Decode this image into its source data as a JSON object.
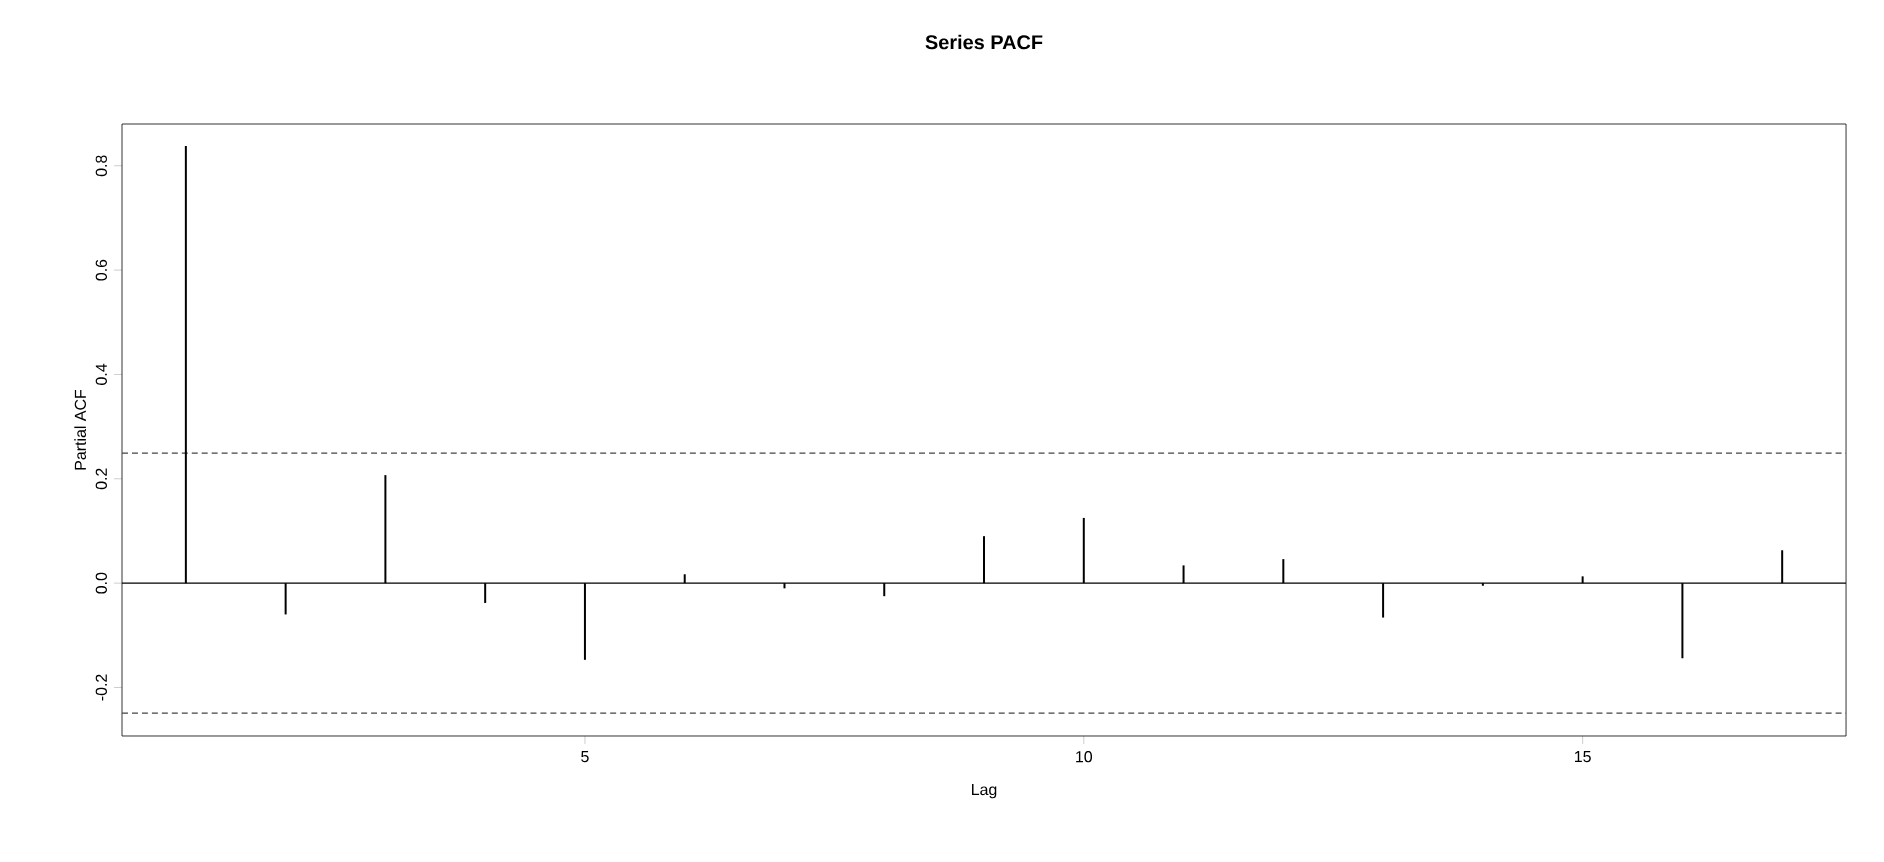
{
  "chart_data": {
    "type": "bar",
    "title": "Series  PACF",
    "xlabel": "Lag",
    "ylabel": "Partial ACF",
    "x": [
      1,
      2,
      3,
      4,
      5,
      6,
      7,
      8,
      9,
      10,
      11,
      12,
      13,
      14,
      15,
      16,
      17
    ],
    "values": [
      0.838,
      -0.06,
      0.207,
      -0.038,
      -0.147,
      0.017,
      -0.01,
      -0.025,
      0.09,
      0.125,
      0.034,
      0.046,
      -0.066,
      -0.005,
      0.013,
      -0.144,
      0.063
    ],
    "color": "#000000",
    "xlim": [
      0.36,
      17.64
    ],
    "ylim": [
      -0.293,
      0.88
    ],
    "xticks": [
      5,
      10,
      15
    ],
    "yticks": [
      {
        "value": -0.2,
        "label": "-0.2"
      },
      {
        "value": 0,
        "label": "0.0"
      },
      {
        "value": 0.2,
        "label": "0.2"
      },
      {
        "value": 0.4,
        "label": "0.4"
      },
      {
        "value": 0.6,
        "label": "0.6"
      },
      {
        "value": 0.8,
        "label": "0.8"
      }
    ],
    "ref_lines": [
      {
        "axis": "y",
        "value": 0,
        "color": "#000000",
        "line_style": "solid"
      },
      {
        "axis": "y",
        "value": 0.249,
        "color": "#444444",
        "line_style": "dashed"
      },
      {
        "axis": "y",
        "value": -0.249,
        "color": "#444444",
        "line_style": "dashed"
      }
    ],
    "grid": false
  }
}
